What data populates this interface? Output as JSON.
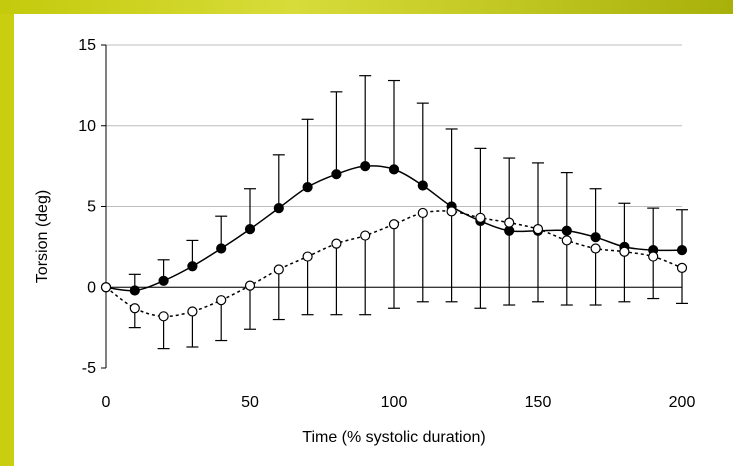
{
  "chart_data": {
    "type": "line",
    "title": "",
    "xlabel": "Time (% systolic duration)",
    "ylabel": "Torsion (deg)",
    "xlim": [
      0,
      200
    ],
    "ylim": [
      -5,
      15
    ],
    "xticks": [
      0,
      50,
      100,
      150,
      200
    ],
    "yticks": [
      -5,
      0,
      5,
      10,
      15
    ],
    "grid": "horizontal",
    "legend": "none",
    "x": [
      0,
      10,
      20,
      30,
      40,
      50,
      60,
      70,
      80,
      90,
      100,
      110,
      120,
      130,
      140,
      150,
      160,
      170,
      180,
      190,
      200
    ],
    "series": [
      {
        "marker": "filled-circle",
        "line_style": "solid",
        "color": "#000000",
        "values": [
          0.0,
          -0.2,
          0.4,
          1.3,
          2.4,
          3.6,
          4.9,
          6.2,
          7.0,
          7.5,
          7.3,
          6.3,
          5.0,
          4.1,
          3.5,
          3.5,
          3.5,
          3.1,
          2.5,
          2.3,
          2.3
        ],
        "error_upper": [
          null,
          0.8,
          1.7,
          2.9,
          4.4,
          6.1,
          8.2,
          10.4,
          12.1,
          13.1,
          12.8,
          11.4,
          9.8,
          8.6,
          8.0,
          7.7,
          7.1,
          6.1,
          5.2,
          4.9,
          4.8
        ]
      },
      {
        "marker": "open-circle",
        "line_style": "dotted",
        "color": "#000000",
        "values": [
          0.0,
          -1.3,
          -1.8,
          -1.5,
          -0.8,
          0.1,
          1.1,
          1.9,
          2.7,
          3.2,
          3.9,
          4.6,
          4.7,
          4.3,
          4.0,
          3.6,
          2.9,
          2.4,
          2.2,
          1.9,
          1.2
        ],
        "error_lower": [
          null,
          -2.5,
          -3.8,
          -3.7,
          -3.3,
          -2.6,
          -2.0,
          -1.7,
          -1.7,
          -1.7,
          -1.3,
          -0.9,
          -0.9,
          -1.3,
          -1.1,
          -0.9,
          -1.1,
          -1.1,
          -0.9,
          -0.7,
          -1.0
        ]
      }
    ]
  }
}
